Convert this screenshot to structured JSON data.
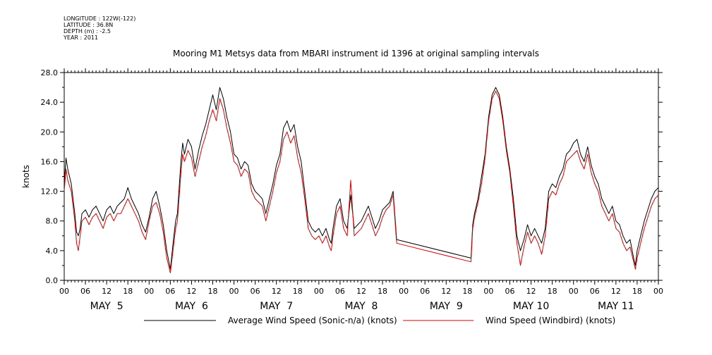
{
  "header": {
    "longitude": "LONGITUDE : 122W(-122)",
    "latitude": "LATITUDE : 36.8N",
    "depth": "DEPTH (m) : -2.5",
    "year": "YEAR : 2011"
  },
  "chart_data": {
    "type": "line",
    "title": "Mooring M1 Metsys data from MBARI instrument id 1396 at original sampling intervals",
    "ylabel": "knots",
    "ylim": [
      0,
      28
    ],
    "y_ticks": [
      "0.0",
      "4.0",
      "8.0",
      "12.0",
      "16.0",
      "20.0",
      "24.0",
      "28.0"
    ],
    "xlim_hours": [
      0,
      168
    ],
    "x_hour_labels": [
      "00",
      "06",
      "12",
      "18",
      "00",
      "06",
      "12",
      "18",
      "00",
      "06",
      "12",
      "18",
      "00",
      "06",
      "12",
      "18",
      "00",
      "06",
      "12",
      "18",
      "00",
      "06",
      "12",
      "18",
      "00",
      "06",
      "12",
      "18",
      "00"
    ],
    "day_labels": [
      "MAY  5",
      "MAY  6",
      "MAY  7",
      "MAY  8",
      "MAY  9",
      "MAY 10",
      "MAY 11"
    ],
    "legend": "bottom",
    "colors": {
      "sonic": "#000000",
      "windbird": "#dd0000"
    },
    "series": [
      {
        "name": "Average Wind Speed (Sonic-n/a) (knots)",
        "x_hours": [
          0,
          0.5,
          1,
          2,
          3,
          3.5,
          4,
          4.5,
          5,
          6,
          7,
          8,
          9,
          10,
          11,
          12,
          13,
          14,
          15,
          16,
          17,
          18,
          19,
          20,
          21,
          22,
          23,
          24,
          25,
          26,
          27,
          28,
          29,
          30,
          31,
          31.5,
          32,
          33,
          33.5,
          34,
          35,
          36,
          37,
          38,
          39,
          40,
          41,
          42,
          43,
          44,
          45,
          46,
          47,
          48,
          49,
          50,
          51,
          52,
          53,
          54,
          55,
          56,
          57,
          58,
          59,
          60,
          61,
          62,
          63,
          64,
          65,
          66,
          67,
          68,
          69,
          70,
          71,
          72,
          73,
          74,
          75,
          75.5,
          76,
          77,
          78,
          79,
          80,
          81,
          82,
          83,
          84,
          85,
          86,
          87,
          88,
          89,
          90,
          91,
          92,
          93,
          94,
          115,
          115.5,
          116,
          117,
          118,
          119,
          120,
          121,
          122,
          123,
          124,
          125,
          126,
          127,
          128,
          129,
          130,
          131,
          132,
          133,
          134,
          135,
          136,
          137,
          138,
          139,
          140,
          141,
          142,
          143,
          144,
          145,
          146,
          147,
          148,
          149,
          150,
          151,
          152,
          153,
          154,
          155,
          156,
          157,
          158,
          159,
          160,
          161,
          161.5,
          162,
          163,
          164,
          165,
          166,
          167,
          168
        ],
        "values": [
          13.0,
          16.5,
          15.0,
          13.0,
          9.0,
          6.5,
          6.0,
          7.0,
          9.0,
          9.5,
          8.5,
          9.5,
          10.0,
          9.0,
          8.0,
          9.5,
          10.0,
          9.0,
          10.0,
          10.5,
          11.0,
          12.5,
          11.0,
          10.0,
          9.0,
          7.5,
          6.5,
          8.5,
          11.0,
          12.0,
          10.0,
          7.5,
          4.0,
          1.5,
          6.0,
          8.0,
          9.0,
          16.0,
          18.5,
          17.0,
          19.0,
          18.0,
          15.0,
          17.5,
          19.5,
          21.0,
          23.0,
          25.0,
          23.0,
          26.0,
          24.5,
          22.0,
          20.0,
          17.0,
          16.5,
          15.0,
          16.0,
          15.5,
          13.0,
          12.0,
          11.5,
          11.0,
          9.0,
          11.0,
          13.0,
          15.5,
          17.0,
          20.5,
          21.5,
          20.0,
          21.0,
          18.0,
          16.0,
          12.0,
          8.0,
          7.0,
          6.5,
          7.0,
          6.0,
          7.0,
          5.5,
          5.0,
          7.0,
          10.0,
          11.0,
          8.0,
          7.0,
          11.5,
          7.0,
          7.5,
          8.0,
          9.0,
          10.0,
          8.5,
          7.0,
          8.0,
          9.5,
          10.0,
          10.5,
          12.0,
          5.5,
          3.0,
          7.5,
          9.0,
          11.0,
          14.0,
          17.0,
          22.0,
          25.0,
          26.0,
          25.0,
          22.0,
          18.0,
          15.0,
          11.0,
          6.0,
          4.0,
          5.5,
          7.5,
          6.0,
          7.0,
          6.0,
          5.0,
          7.0,
          12.0,
          13.0,
          12.5,
          14.0,
          15.0,
          17.0,
          17.5,
          18.5,
          19.0,
          17.0,
          16.0,
          18.0,
          15.5,
          14.0,
          13.0,
          11.0,
          10.0,
          9.0,
          10.0,
          8.0,
          7.5,
          6.0,
          5.0,
          5.5,
          3.0,
          2.0,
          4.0,
          6.0,
          8.0,
          9.5,
          11.0,
          12.0,
          12.5
        ]
      },
      {
        "name": "Wind Speed (Windbird) (knots)",
        "x_hours": [
          0,
          0.5,
          1,
          2,
          3,
          3.5,
          4,
          4.5,
          5,
          6,
          7,
          8,
          9,
          10,
          11,
          12,
          13,
          14,
          15,
          16,
          17,
          18,
          19,
          20,
          21,
          22,
          23,
          24,
          25,
          26,
          27,
          28,
          29,
          30,
          31,
          31.5,
          32,
          33,
          33.5,
          34,
          35,
          36,
          37,
          38,
          39,
          40,
          41,
          42,
          43,
          44,
          45,
          46,
          47,
          48,
          49,
          50,
          51,
          52,
          53,
          54,
          55,
          56,
          57,
          58,
          59,
          60,
          61,
          62,
          63,
          64,
          65,
          66,
          67,
          68,
          69,
          70,
          71,
          72,
          73,
          74,
          75,
          75.5,
          76,
          77,
          78,
          79,
          80,
          81,
          82,
          83,
          84,
          85,
          86,
          87,
          88,
          89,
          90,
          91,
          92,
          93,
          94,
          115,
          115.5,
          116,
          117,
          118,
          119,
          120,
          121,
          122,
          123,
          124,
          125,
          126,
          127,
          128,
          129,
          130,
          131,
          132,
          133,
          134,
          135,
          136,
          137,
          138,
          139,
          140,
          141,
          142,
          143,
          144,
          145,
          146,
          147,
          148,
          149,
          150,
          151,
          152,
          153,
          154,
          155,
          156,
          157,
          158,
          159,
          160,
          161,
          161.5,
          162,
          163,
          164,
          165,
          166,
          167,
          168
        ],
        "values": [
          12.0,
          15.0,
          13.5,
          12.0,
          8.0,
          5.0,
          4.0,
          6.0,
          8.0,
          8.5,
          7.5,
          8.5,
          9.0,
          8.0,
          7.0,
          8.5,
          9.0,
          8.0,
          9.0,
          9.0,
          10.0,
          11.0,
          10.0,
          9.0,
          8.0,
          6.5,
          5.5,
          8.0,
          10.0,
          10.5,
          9.0,
          6.5,
          3.0,
          1.0,
          5.0,
          7.0,
          8.0,
          14.5,
          17.0,
          16.0,
          17.5,
          16.5,
          14.0,
          16.0,
          18.0,
          19.5,
          21.5,
          23.0,
          21.5,
          24.5,
          23.0,
          20.5,
          18.5,
          16.0,
          15.5,
          14.0,
          15.0,
          14.5,
          12.0,
          11.0,
          10.5,
          10.0,
          8.0,
          10.0,
          12.0,
          14.5,
          16.0,
          19.0,
          20.0,
          18.5,
          19.5,
          16.5,
          14.5,
          11.0,
          7.0,
          6.0,
          5.5,
          6.0,
          5.0,
          6.0,
          4.5,
          4.0,
          6.0,
          9.0,
          10.0,
          7.0,
          6.0,
          13.5,
          6.0,
          6.5,
          7.0,
          8.0,
          9.0,
          7.5,
          6.0,
          7.0,
          8.5,
          9.5,
          10.0,
          11.5,
          5.0,
          2.5,
          7.0,
          8.5,
          10.5,
          13.0,
          16.5,
          21.5,
          24.5,
          25.5,
          24.5,
          21.5,
          17.5,
          14.5,
          10.0,
          5.0,
          2.0,
          4.5,
          6.5,
          5.0,
          6.0,
          5.0,
          3.5,
          6.0,
          11.0,
          12.0,
          11.5,
          13.0,
          14.0,
          16.0,
          16.5,
          17.0,
          17.5,
          16.0,
          15.0,
          17.0,
          14.5,
          13.0,
          12.0,
          10.0,
          9.0,
          8.0,
          9.0,
          7.0,
          6.5,
          5.0,
          4.0,
          4.5,
          2.5,
          1.5,
          3.0,
          5.0,
          7.0,
          8.5,
          10.0,
          11.0,
          11.5
        ]
      }
    ]
  }
}
